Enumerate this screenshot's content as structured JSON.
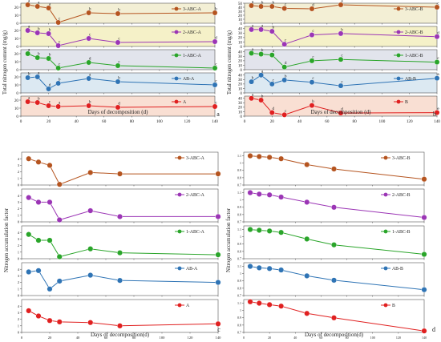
{
  "figure": {
    "panel_letters": [
      "a",
      "b",
      "c",
      "d"
    ],
    "x_label_ab": "Days of decomposition (d)",
    "x_label_cd": "Days of decomposition(d)",
    "y_label_ab": "Total nitrogen content (mg/g)",
    "y_label_cd": "Nitrogen accumulation factor"
  },
  "chart_data": [
    {
      "panel": "a",
      "type": "line",
      "xlabel": "Days of decomposition (d)",
      "ylabel": "Total nitrogen content (mg/g)",
      "x": [
        5,
        12,
        20,
        27,
        49,
        70,
        140
      ],
      "xlim": [
        0,
        140
      ],
      "xticks": [
        0,
        20,
        40,
        60,
        80,
        100,
        120,
        140
      ],
      "subplots": [
        {
          "name": "3-ABC-A",
          "color": "#b5541f",
          "fill": "#f3efd5",
          "ylim": [
            0,
            25
          ],
          "yticks": [
            0,
            10,
            20
          ],
          "values": [
            23,
            21,
            19,
            1,
            13,
            12,
            13
          ],
          "letters": [
            "a",
            "a",
            "a",
            "c",
            "b",
            "b",
            "b"
          ]
        },
        {
          "name": "2-ABC-A",
          "color": "#9b35b5",
          "fill": "#f5f1c8",
          "ylim": [
            0,
            25
          ],
          "yticks": [
            0,
            10,
            20
          ],
          "values": [
            20,
            17,
            16,
            1,
            10,
            5,
            6
          ],
          "letters": [
            "a",
            "b",
            "b",
            "c",
            "c",
            "c",
            "d"
          ]
        },
        {
          "name": "1-ABC-A",
          "color": "#2aa52a",
          "fill": "#e2e4ec",
          "ylim": [
            0,
            25
          ],
          "yticks": [
            0,
            10,
            20
          ],
          "values": [
            20,
            15,
            14,
            2,
            9,
            5,
            2
          ],
          "letters": [
            "a",
            "b",
            "b",
            "c",
            "d",
            "c",
            "c"
          ]
        },
        {
          "name": "AB-A",
          "color": "#2f74b5",
          "fill": "#dce9f2",
          "ylim": [
            0,
            25
          ],
          "yticks": [
            0,
            10,
            20
          ],
          "values": [
            19,
            20,
            5,
            12,
            18,
            14,
            10
          ],
          "letters": [
            "b",
            "a",
            "d",
            "b",
            "a",
            "b",
            "c"
          ]
        },
        {
          "name": "A",
          "color": "#e02020",
          "fill": "#f9dfd3",
          "ylim": [
            0,
            25
          ],
          "yticks": [
            0,
            10,
            20
          ],
          "values": [
            18,
            17,
            13,
            12,
            13,
            11,
            12
          ],
          "letters": [
            "a",
            "b",
            "c",
            "a",
            "b",
            "d",
            "c"
          ]
        }
      ]
    },
    {
      "panel": "b",
      "type": "line",
      "xlabel": "Days of decomposition (d)",
      "ylabel": "Total nitrogen content (mg/g)",
      "x": [
        5,
        12,
        20,
        29,
        49,
        70,
        140
      ],
      "xlim": [
        0,
        140
      ],
      "xticks": [
        0,
        20,
        40,
        60,
        80,
        100,
        120,
        140
      ],
      "subplots": [
        {
          "name": "3-ABC-B",
          "color": "#b5541f",
          "fill": "#f3efd5",
          "ylim": [
            0,
            50
          ],
          "yticks": [
            0,
            10,
            20,
            30,
            40,
            50
          ],
          "values": [
            44,
            42,
            42,
            37,
            36,
            46,
            40
          ],
          "letters": [
            "a",
            "b",
            "b",
            "c",
            "d",
            "a",
            "c"
          ]
        },
        {
          "name": "2-ABC-B",
          "color": "#9b35b5",
          "fill": "#f5f1c8",
          "ylim": [
            0,
            45
          ],
          "yticks": [
            0,
            10,
            20,
            30,
            40
          ],
          "values": [
            38,
            38,
            34,
            5,
            26,
            29,
            22
          ],
          "letters": [
            "a",
            "a",
            "b",
            "c",
            "c",
            "b",
            "d"
          ]
        },
        {
          "name": "1-ABC-B",
          "color": "#2aa52a",
          "fill": "#e2e4ec",
          "ylim": [
            0,
            45
          ],
          "yticks": [
            0,
            10,
            20,
            30,
            40
          ],
          "values": [
            37,
            35,
            33,
            6,
            20,
            23,
            17
          ],
          "letters": [
            "a",
            "b",
            "a",
            "d",
            "c",
            "c",
            "c"
          ]
        },
        {
          "name": "AB-B",
          "color": "#2f74b5",
          "fill": "#dce9f2",
          "ylim": [
            0,
            45
          ],
          "yticks": [
            0,
            10,
            20,
            30,
            40
          ],
          "values": [
            25,
            40,
            20,
            29,
            24,
            16,
            33
          ],
          "letters": [
            "b",
            "a",
            "c",
            "b",
            "c",
            "c",
            "a"
          ]
        },
        {
          "name": "B",
          "color": "#e02020",
          "fill": "#f9dfd3",
          "ylim": [
            0,
            45
          ],
          "yticks": [
            0,
            10,
            20,
            30,
            40
          ],
          "values": [
            40,
            36,
            8,
            3,
            24,
            7,
            8
          ],
          "letters": [
            "a",
            "b",
            "d",
            "c",
            "b",
            "d",
            "e"
          ]
        }
      ]
    },
    {
      "panel": "c",
      "type": "line",
      "xlabel": "Days of decomposition(d)",
      "ylabel": "Nitrogen accumulation factor",
      "x": [
        5,
        12,
        20,
        27,
        49,
        70,
        140
      ],
      "xlim": [
        0,
        140
      ],
      "xticks": [
        0,
        20,
        40,
        60,
        80,
        100,
        120,
        140
      ],
      "subplots": [
        {
          "name": "3-ABC-A",
          "color": "#b5541f",
          "fill": "#ffffff",
          "ylim": [
            0,
            5
          ],
          "yticks": [
            0,
            1,
            2,
            3,
            4
          ],
          "values": [
            4.0,
            3.5,
            3.0,
            0.1,
            1.9,
            1.7,
            1.7
          ],
          "letters": []
        },
        {
          "name": "2-ABC-A",
          "color": "#9b35b5",
          "fill": "#ffffff",
          "ylim": [
            0,
            5
          ],
          "yticks": [
            0,
            1,
            2,
            3,
            4
          ],
          "values": [
            3.7,
            3.0,
            3.0,
            0.3,
            1.7,
            0.8,
            0.8
          ],
          "letters": []
        },
        {
          "name": "1-ABC-A",
          "color": "#2aa52a",
          "fill": "#ffffff",
          "ylim": [
            0,
            5
          ],
          "yticks": [
            0,
            1,
            2,
            3,
            4
          ],
          "values": [
            3.7,
            2.8,
            2.8,
            0.3,
            1.5,
            0.9,
            0.6
          ],
          "letters": []
        },
        {
          "name": "AB-A",
          "color": "#2f74b5",
          "fill": "#ffffff",
          "ylim": [
            0,
            5
          ],
          "yticks": [
            0,
            1,
            2,
            3,
            4
          ],
          "values": [
            3.6,
            3.8,
            1.0,
            2.2,
            3.1,
            2.3,
            2.0
          ],
          "letters": []
        },
        {
          "name": "A",
          "color": "#e02020",
          "fill": "#ffffff",
          "ylim": [
            0,
            5
          ],
          "yticks": [
            0,
            1,
            2,
            3,
            4
          ],
          "values": [
            3.3,
            2.5,
            1.8,
            1.6,
            1.5,
            1.0,
            1.3
          ],
          "letters": []
        }
      ]
    },
    {
      "panel": "d",
      "type": "line",
      "xlabel": "Days of decomposition(d)",
      "ylabel": "Nitrogen accumulation factor",
      "x": [
        5,
        12,
        20,
        29,
        49,
        70,
        140
      ],
      "xlim": [
        0,
        140
      ],
      "xticks": [
        0,
        20,
        40,
        60,
        80,
        100,
        120,
        140
      ],
      "subplots": [
        {
          "name": "3-ABC-B",
          "color": "#b5541f",
          "fill": "#ffffff",
          "ylim": [
            0.7,
            1.15
          ],
          "yticks": [
            0.7,
            0.8,
            0.9,
            1.0,
            1.1
          ],
          "values": [
            1.1,
            1.09,
            1.08,
            1.06,
            0.98,
            0.92,
            0.78
          ],
          "letters": []
        },
        {
          "name": "2-ABC-B",
          "color": "#9b35b5",
          "fill": "#ffffff",
          "ylim": [
            0.7,
            1.15
          ],
          "yticks": [
            0.7,
            0.8,
            0.9,
            1.0,
            1.1
          ],
          "values": [
            1.1,
            1.08,
            1.07,
            1.04,
            0.97,
            0.9,
            0.76
          ],
          "letters": []
        },
        {
          "name": "1-ABC-B",
          "color": "#2aa52a",
          "fill": "#ffffff",
          "ylim": [
            0.7,
            1.15
          ],
          "yticks": [
            0.7,
            0.8,
            0.9,
            1.0,
            1.1
          ],
          "values": [
            1.1,
            1.09,
            1.08,
            1.06,
            0.97,
            0.89,
            0.76
          ],
          "letters": []
        },
        {
          "name": "AB-B",
          "color": "#2f74b5",
          "fill": "#ffffff",
          "ylim": [
            0.7,
            1.15
          ],
          "yticks": [
            0.7,
            0.8,
            0.9,
            1.0,
            1.1
          ],
          "values": [
            1.1,
            1.08,
            1.07,
            1.05,
            0.97,
            0.91,
            0.78
          ],
          "letters": []
        },
        {
          "name": "B",
          "color": "#e02020",
          "fill": "#ffffff",
          "ylim": [
            0.7,
            1.15
          ],
          "yticks": [
            0.7,
            0.8,
            0.9,
            1.0,
            1.1
          ],
          "values": [
            1.12,
            1.1,
            1.08,
            1.06,
            0.96,
            0.9,
            0.72
          ],
          "letters": []
        }
      ]
    }
  ]
}
